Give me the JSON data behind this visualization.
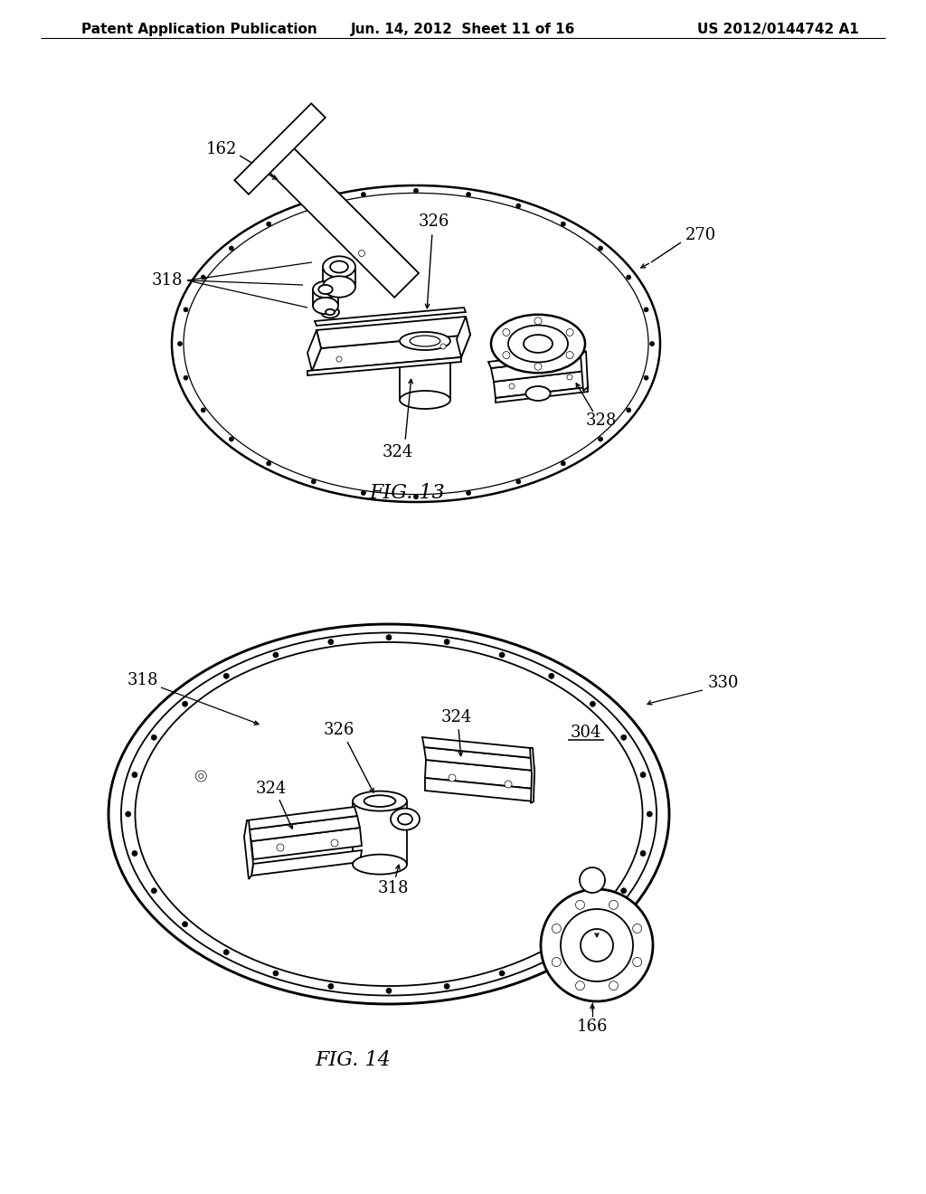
{
  "bg_color": "#ffffff",
  "line_color": "#000000",
  "header_left": "Patent Application Publication",
  "header_mid": "Jun. 14, 2012  Sheet 11 of 16",
  "header_right": "US 2012/0144742 A1",
  "fig13_label": "FIG. 13",
  "fig14_label": "FIG. 14",
  "lw_thick": 1.8,
  "lw_med": 1.3,
  "lw_thin": 0.9
}
